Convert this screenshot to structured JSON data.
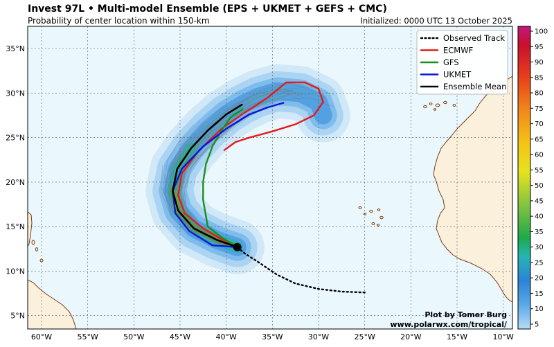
{
  "header": {
    "title": "Invest 97L • Multi-model Ensemble (EPS + UKMET + GEFS + CMC)",
    "subtitle": "Probability of center location within 150-km",
    "initialized": "Initialized: 0000 UTC 13 October 2025"
  },
  "credit": {
    "line1": "Plot by Tomer Burg",
    "line2": "www.polarwx.com/tropical/"
  },
  "axes": {
    "lon_labels": [
      "60°W",
      "55°W",
      "50°W",
      "45°W",
      "40°W",
      "35°W",
      "30°W",
      "25°W",
      "20°W",
      "15°W",
      "10°W"
    ],
    "lat_labels": [
      "35°N",
      "30°N",
      "25°N",
      "20°N",
      "15°N",
      "10°N",
      "5°N"
    ]
  },
  "legend": {
    "placement": "top-right",
    "items": [
      {
        "label": "Observed Track",
        "color": "#000000",
        "style": "dotted"
      },
      {
        "label": "ECMWF",
        "color": "#e31a1c",
        "style": "solid"
      },
      {
        "label": "GFS",
        "color": "#1a8f1a",
        "style": "solid"
      },
      {
        "label": "UKMET",
        "color": "#0a14e0",
        "style": "solid"
      },
      {
        "label": "Ensemble Mean",
        "color": "#000000",
        "style": "solid"
      }
    ]
  },
  "colorbar": {
    "ticks": [
      "100",
      "95",
      "90",
      "85",
      "80",
      "75",
      "70",
      "65",
      "60",
      "55",
      "50",
      "45",
      "40",
      "35",
      "30",
      "25",
      "20",
      "15",
      "10",
      "5"
    ],
    "min": 5,
    "max": 100
  },
  "map_data": {
    "lon_range": [
      -61.5,
      -9
    ],
    "lat_range": [
      3.5,
      37.5
    ],
    "current_position": {
      "lon": -38.8,
      "lat": 12.7
    },
    "tracks": {
      "observed": [
        [
          -25.0,
          7.6
        ],
        [
          -27.5,
          7.7
        ],
        [
          -30.0,
          8.0
        ],
        [
          -32.5,
          8.6
        ],
        [
          -34.5,
          9.6
        ],
        [
          -36.5,
          11.0
        ],
        [
          -38.0,
          12.0
        ],
        [
          -38.8,
          12.7
        ]
      ],
      "ecmwf": [
        [
          -38.8,
          12.7
        ],
        [
          -40.5,
          13.6
        ],
        [
          -42.5,
          14.8
        ],
        [
          -44.5,
          16.5
        ],
        [
          -45.2,
          18.5
        ],
        [
          -44.8,
          21.0
        ],
        [
          -43.0,
          23.5
        ],
        [
          -40.5,
          26.0
        ],
        [
          -38.0,
          27.8
        ],
        [
          -35.5,
          29.5
        ],
        [
          -33.5,
          31.2
        ],
        [
          -31.5,
          31.2
        ],
        [
          -30.0,
          30.5
        ],
        [
          -29.5,
          29.0
        ],
        [
          -30.5,
          27.5
        ],
        [
          -32.5,
          26.5
        ],
        [
          -35.0,
          25.7
        ],
        [
          -37.5,
          25.0
        ],
        [
          -39.0,
          24.5
        ],
        [
          -40.2,
          23.6
        ]
      ],
      "gfs": [
        [
          -38.8,
          12.7
        ],
        [
          -40.5,
          13.8
        ],
        [
          -42.0,
          15.0
        ],
        [
          -42.3,
          16.8
        ],
        [
          -42.5,
          18.0
        ],
        [
          -42.5,
          20.0
        ],
        [
          -42.2,
          22.0
        ],
        [
          -41.5,
          24.0
        ],
        [
          -40.5,
          25.8
        ],
        [
          -39.5,
          27.3
        ],
        [
          -38.2,
          28.2
        ]
      ],
      "ukmet": [
        [
          -38.8,
          12.7
        ],
        [
          -41.5,
          12.9
        ],
        [
          -44.0,
          14.5
        ],
        [
          -45.5,
          16.5
        ],
        [
          -45.8,
          19.0
        ],
        [
          -44.8,
          21.5
        ],
        [
          -42.5,
          24.0
        ],
        [
          -40.0,
          26.0
        ],
        [
          -37.5,
          27.6
        ],
        [
          -35.5,
          28.4
        ],
        [
          -33.8,
          28.9
        ]
      ],
      "mean": [
        [
          -38.8,
          12.7
        ],
        [
          -41.0,
          13.5
        ],
        [
          -43.5,
          14.8
        ],
        [
          -45.2,
          16.8
        ],
        [
          -45.8,
          19.0
        ],
        [
          -45.3,
          21.5
        ],
        [
          -43.8,
          23.8
        ],
        [
          -42.0,
          25.8
        ],
        [
          -40.0,
          27.6
        ],
        [
          -38.3,
          28.7
        ]
      ]
    }
  }
}
